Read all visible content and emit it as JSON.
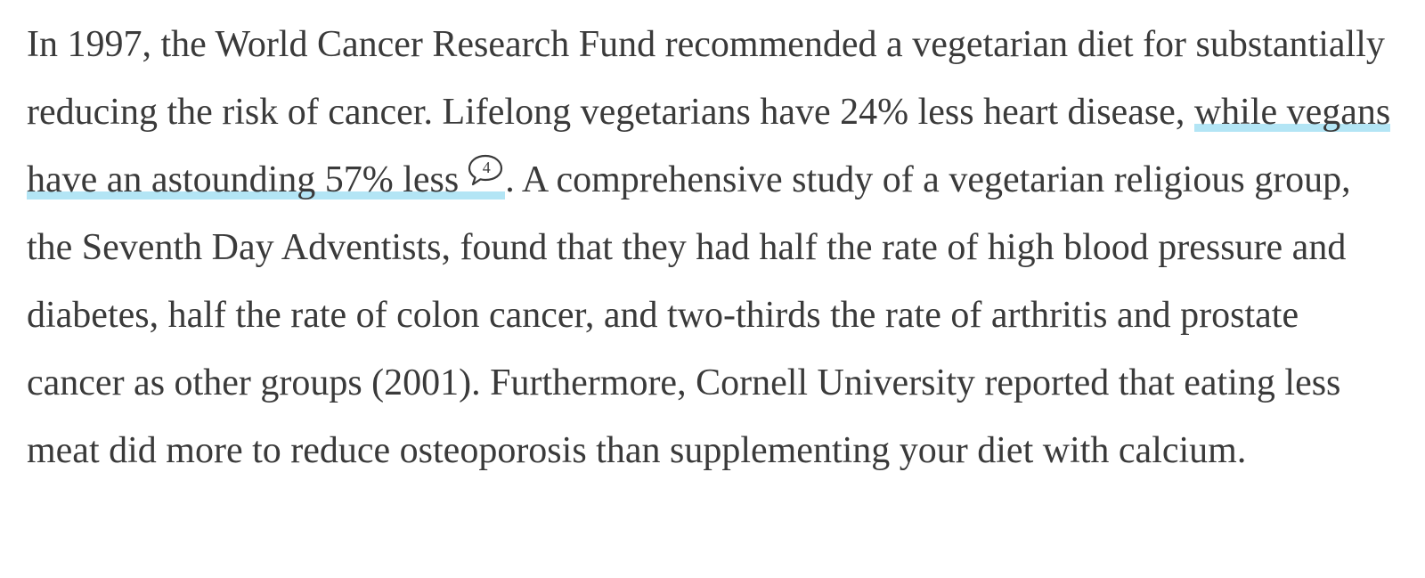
{
  "paragraph": {
    "text_before": "In 1997, the World Cancer Research Fund recommended a vegetarian diet for substantially reducing the risk of cancer. Lifelong vegetarians have 24% less heart disease, ",
    "highlighted_text": "while vegans have an astounding 57% less",
    "comment_count": "4",
    "text_after": ". A comprehensive study of a vegetarian religious group, the Seventh Day Adventists, found that they had half the rate of high blood pressure and diabetes, half the rate of colon cancer, and two-thirds the rate of arthritis and prostate cancer as other groups (2001). Furthermore, Cornell University reported that eating less meat did more to reduce osteoporosis than supplementing your diet with calcium."
  },
  "icons": {
    "comment": "speech-bubble-icon"
  },
  "colors": {
    "text": "#3a3a3a",
    "highlight": "#b3e5f5",
    "background": "#ffffff"
  }
}
